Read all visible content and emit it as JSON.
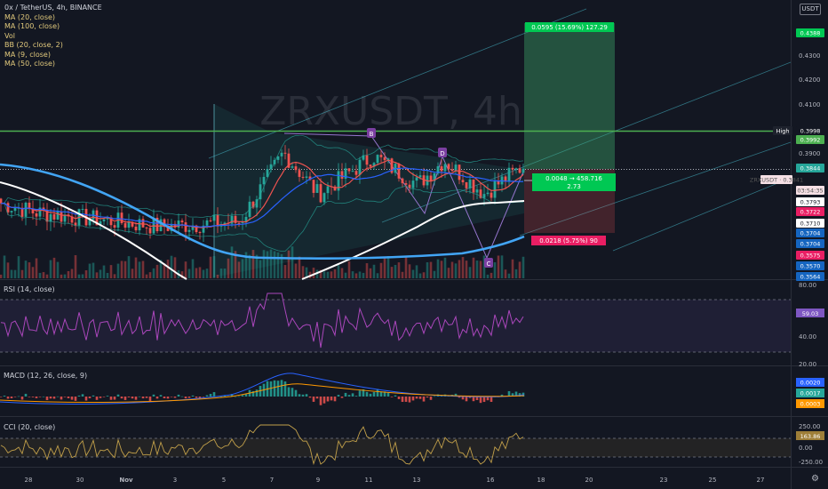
{
  "symbol_line": "0x / TetherUS, 4h, BINANCE",
  "legend": [
    "MA (20, close)",
    "MA (100, close)",
    "Vol",
    "BB (20, close, 2)",
    "MA (9, close)",
    "MA (50, close)"
  ],
  "currency_button": "USDT",
  "watermark": "ZRXUSDT, 4h",
  "colors": {
    "background": "#131722",
    "up": "#26a69a",
    "down": "#ef5350",
    "ma20": "#ffffff",
    "ma100": "#42a5f5",
    "high_line": "#4caf50",
    "rsi": "#ab47bc",
    "cci": "#9e7e38"
  },
  "chart_data": [
    {
      "type": "candlestick",
      "pair": "ZRX/USDT",
      "interval": "4h",
      "x_ticks": [
        "28",
        "30",
        "Nov",
        "3",
        "5",
        "7",
        "9",
        "11",
        "13",
        "16",
        "18",
        "20",
        "23",
        "25",
        "27"
      ],
      "y_ticks": [
        "0.4300",
        "0.4200",
        "0.4100",
        "0.3900"
      ],
      "ylim": [
        0.3564,
        0.4413
      ],
      "price_labels": [
        {
          "text": "0.4388",
          "type": "target"
        },
        {
          "text": "High",
          "type": "title"
        },
        {
          "text": "0.3998",
          "type": "high"
        },
        {
          "text": "0.3992",
          "type": "high-box"
        },
        {
          "text": "0.3844",
          "type": "price-up"
        },
        {
          "text": "ZRXUSDT · 0.3841",
          "type": "symbol"
        },
        {
          "text": "03:54:35",
          "type": "countdown"
        },
        {
          "text": "0.3793",
          "type": "white"
        },
        {
          "text": "0.3722",
          "type": "red"
        },
        {
          "text": "0.3710",
          "type": "white"
        },
        {
          "text": "0.3704",
          "type": "blue"
        },
        {
          "text": "0.3704",
          "type": "blue"
        },
        {
          "text": "0.3575",
          "type": "red"
        },
        {
          "text": "0.3570",
          "type": "blue"
        },
        {
          "text": "0.3564",
          "type": "blue"
        }
      ],
      "position": {
        "target_label": "0.0595 (15.69%) 127.29",
        "current_label_1": "0.0048 → 458.716",
        "current_label_2": "2.73",
        "stop_label": "0.0218 (5.75%) 90"
      },
      "pattern_points": [
        "B",
        "D",
        "C"
      ],
      "last_close": 0.3844,
      "high": 0.3998
    },
    {
      "type": "line",
      "name": "RSI (14, close)",
      "y_ticks": [
        "80.00",
        "40.00",
        "20.00"
      ],
      "bands": [
        70,
        30
      ],
      "last_value": "59.03"
    },
    {
      "type": "histogram",
      "name": "MACD (12, 26, close, 9)",
      "labels": [
        "0.0020",
        "0.0017",
        "0.0003"
      ]
    },
    {
      "type": "line",
      "name": "CCI (20, close)",
      "y_ticks": [
        "250.00",
        "0.00",
        "-250.00"
      ],
      "last_value": "163.86"
    }
  ]
}
